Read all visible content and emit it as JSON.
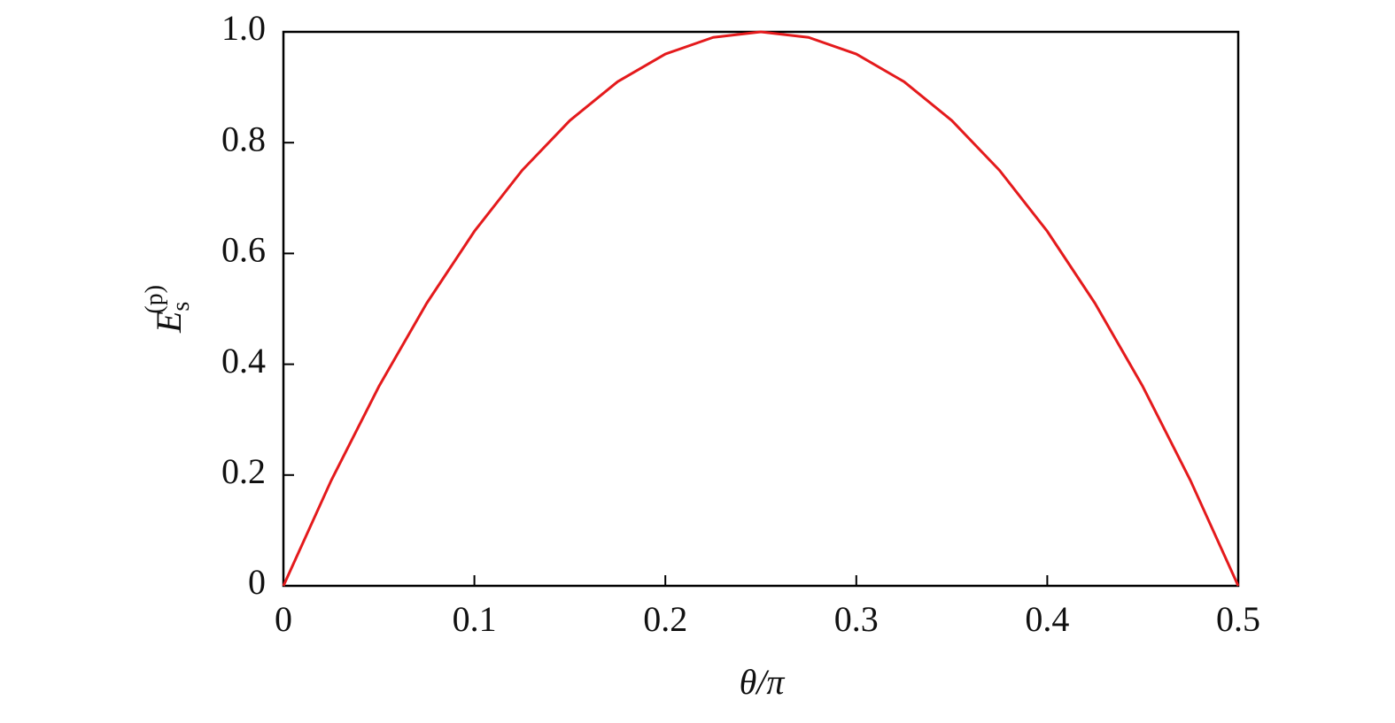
{
  "chart_data": {
    "type": "line",
    "xlabel": "θ/π",
    "ylabel": {
      "base": "E",
      "sub": "s",
      "sup": "(p)"
    },
    "x": [
      0,
      0.025,
      0.05,
      0.075,
      0.1,
      0.125,
      0.15,
      0.175,
      0.2,
      0.225,
      0.25,
      0.275,
      0.3,
      0.325,
      0.35,
      0.375,
      0.4,
      0.425,
      0.45,
      0.475,
      0.5
    ],
    "values": [
      0,
      0.19,
      0.36,
      0.51,
      0.64,
      0.75,
      0.84,
      0.91,
      0.96,
      0.99,
      1,
      0.99,
      0.96,
      0.91,
      0.84,
      0.75,
      0.64,
      0.51,
      0.36,
      0.19,
      0
    ],
    "color": "#e41a1c",
    "xlim": [
      0,
      0.5
    ],
    "xticks": [
      0,
      0.1,
      0.2,
      0.3,
      0.4,
      0.5
    ],
    "ylim": [
      0,
      1
    ],
    "yticks": [
      0,
      0.2,
      0.4,
      0.6,
      0.8,
      {
        "value": 1,
        "label": "1.0"
      }
    ],
    "grid": false
  }
}
